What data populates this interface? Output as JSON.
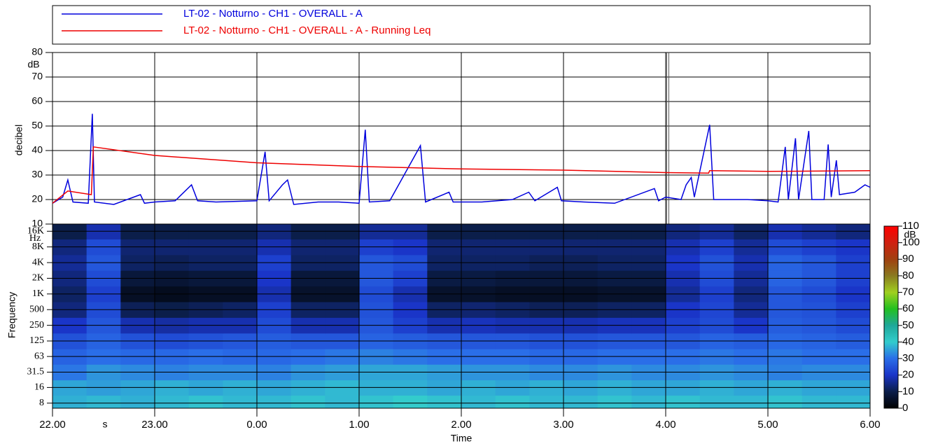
{
  "chart_data": [
    {
      "type": "line",
      "ylabel": "decibel",
      "y_unit": "dB",
      "xlim": [
        0,
        8
      ],
      "ylim": [
        10,
        80
      ],
      "yticks": [
        10,
        20,
        30,
        40,
        50,
        60,
        70,
        80
      ],
      "grid": true,
      "cursor": 6.02,
      "series": [
        {
          "name": "LT-02 - Notturno - CH1 - OVERALL - A",
          "color": "#0000dd",
          "x": [
            0,
            0.1,
            0.15,
            0.2,
            0.35,
            0.39,
            0.41,
            0.6,
            0.86,
            0.9,
            1.0,
            1.2,
            1.36,
            1.42,
            1.6,
            2.0,
            2.08,
            2.12,
            2.25,
            2.3,
            2.36,
            2.6,
            2.8,
            3.0,
            3.06,
            3.1,
            3.3,
            3.6,
            3.65,
            3.88,
            3.92,
            4.2,
            4.5,
            4.66,
            4.72,
            4.94,
            4.98,
            5.2,
            5.5,
            5.89,
            5.93,
            6.0,
            6.15,
            6.2,
            6.25,
            6.28,
            6.43,
            6.47,
            6.8,
            7.0,
            7.1,
            7.17,
            7.2,
            7.27,
            7.3,
            7.4,
            7.43,
            7.55,
            7.59,
            7.62,
            7.67,
            7.7,
            7.85,
            7.95,
            8.0
          ],
          "values": [
            18.5,
            21,
            28,
            19,
            18.5,
            55,
            19,
            18,
            22,
            18.5,
            19,
            19.5,
            26,
            19.5,
            19,
            19.5,
            39.5,
            19.5,
            26,
            28,
            18,
            19,
            19,
            18.5,
            48.5,
            19,
            19.5,
            42,
            19,
            23,
            19,
            19,
            20,
            23,
            19.5,
            25,
            19.5,
            19,
            18.5,
            24.5,
            19.5,
            21,
            20,
            26,
            29,
            21,
            50.5,
            20,
            20,
            19.5,
            19,
            41.5,
            20,
            45,
            20,
            48,
            20,
            20,
            42.5,
            21,
            36,
            22,
            23,
            26,
            25
          ]
        },
        {
          "name": "LT-02 - Notturno - CH1 - OVERALL - A - Running Leq",
          "color": "#ee0000",
          "x": [
            0,
            0.15,
            0.38,
            0.4,
            1.0,
            2.0,
            3.0,
            4.0,
            5.0,
            6.0,
            6.42,
            6.43,
            7.0,
            8.0
          ],
          "values": [
            18.5,
            23.5,
            22,
            41.5,
            38,
            35,
            33.5,
            32.5,
            32,
            31,
            30.8,
            31.8,
            31.5,
            31.8
          ]
        }
      ]
    },
    {
      "type": "heatmap",
      "xlabel": "Time",
      "x_unit": "s",
      "ylabel": "Frequency",
      "y_unit": "Hz",
      "colorbar_unit": "dB",
      "xlim": [
        0,
        8
      ],
      "xticks": [
        {
          "value": 0,
          "label": "22.00"
        },
        {
          "value": 1,
          "label": "23.00"
        },
        {
          "value": 2,
          "label": "0.00"
        },
        {
          "value": 3,
          "label": "1.00"
        },
        {
          "value": 4,
          "label": "2.00"
        },
        {
          "value": 5,
          "label": "3.00"
        },
        {
          "value": 6,
          "label": "4.00"
        },
        {
          "value": 7,
          "label": "5.00"
        },
        {
          "value": 8,
          "label": "6.00"
        }
      ],
      "log": true,
      "ylim": [
        6.4,
        22000
      ],
      "yticks": [
        8,
        16,
        31.5,
        63,
        125,
        250,
        500,
        {
          "value": 1000,
          "label": "1K"
        },
        {
          "value": 2000,
          "label": "2K"
        },
        {
          "value": 4000,
          "label": "4K"
        },
        {
          "value": 8000,
          "label": "8K"
        },
        {
          "value": 16000,
          "label": "16K"
        }
      ],
      "frequencies": [
        8,
        16,
        31.5,
        63,
        125,
        250,
        500,
        1000,
        2000,
        4000,
        8000,
        16000
      ],
      "z": [
        [
          37,
          38,
          37,
          38,
          39,
          38,
          38,
          39,
          38,
          39,
          40,
          39,
          38,
          39,
          38,
          38,
          39,
          38,
          39,
          38,
          38,
          39,
          38,
          38
        ],
        [
          36,
          35,
          36,
          37,
          36,
          37,
          36,
          37,
          38,
          37,
          37,
          36,
          37,
          36,
          37,
          36,
          37,
          36,
          36,
          37,
          36,
          37,
          36,
          36
        ],
        [
          31,
          34,
          33,
          32,
          33,
          33,
          32,
          34,
          35,
          36,
          36,
          35,
          34,
          34,
          33,
          33,
          34,
          33,
          33,
          34,
          33,
          32,
          33,
          33
        ],
        [
          28,
          30,
          29,
          29,
          30,
          29,
          29,
          30,
          31,
          32,
          31,
          30,
          30,
          30,
          29,
          29,
          30,
          30,
          30,
          31,
          30,
          31,
          30,
          30
        ],
        [
          25,
          28,
          25,
          24,
          25,
          26,
          27,
          26,
          26,
          28,
          27,
          26,
          26,
          26,
          25,
          25,
          26,
          26,
          26,
          28,
          27,
          29,
          28,
          27
        ],
        [
          20,
          26,
          18,
          17,
          18,
          18,
          24,
          18,
          18,
          26,
          22,
          18,
          19,
          18,
          18,
          18,
          19,
          19,
          22,
          24,
          20,
          27,
          26,
          24
        ],
        [
          14,
          24,
          11,
          10,
          11,
          12,
          22,
          12,
          12,
          25,
          20,
          12,
          13,
          12,
          11,
          11,
          12,
          12,
          20,
          23,
          16,
          26,
          25,
          22
        ],
        [
          12,
          22,
          5,
          4,
          5,
          5,
          18,
          6,
          6,
          24,
          18,
          6,
          6,
          5,
          5,
          5,
          6,
          6,
          16,
          22,
          14,
          26,
          24,
          20
        ],
        [
          14,
          24,
          8,
          7,
          8,
          8,
          20,
          8,
          8,
          26,
          22,
          9,
          9,
          8,
          8,
          8,
          9,
          9,
          18,
          24,
          16,
          28,
          26,
          22
        ],
        [
          16,
          26,
          12,
          11,
          12,
          12,
          22,
          12,
          12,
          26,
          24,
          12,
          12,
          12,
          11,
          11,
          12,
          12,
          20,
          25,
          18,
          28,
          26,
          22
        ],
        [
          14,
          24,
          13,
          13,
          13,
          13,
          18,
          13,
          13,
          22,
          20,
          13,
          13,
          13,
          13,
          13,
          13,
          13,
          18,
          22,
          16,
          24,
          22,
          20
        ],
        [
          10,
          18,
          10,
          10,
          10,
          10,
          14,
          10,
          10,
          16,
          16,
          10,
          10,
          10,
          10,
          10,
          10,
          10,
          14,
          16,
          12,
          18,
          16,
          14
        ]
      ],
      "clim": [
        0,
        110
      ],
      "cticks": [
        0,
        10,
        20,
        30,
        40,
        50,
        60,
        70,
        80,
        90,
        100,
        110
      ],
      "colorscale": [
        "#000000",
        "#0b1e4a",
        "#1a35c8",
        "#2a6ee8",
        "#33cccc",
        "#1fa89a",
        "#22c020",
        "#a0d020",
        "#8a7a20",
        "#a04010",
        "#d02010",
        "#ff0000"
      ]
    }
  ]
}
